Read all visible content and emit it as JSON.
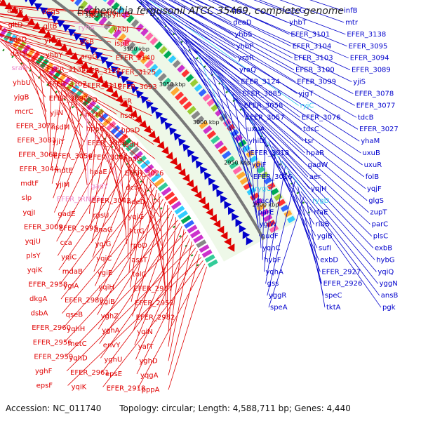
{
  "title": "Escherichia fergusonii ATCC 35469, complete genome",
  "footer": {
    "accession": "Accession: NC_011740",
    "topology": "Topology: circular; Length: 4,588,711 bp; Genes: 4,440"
  },
  "colors": {
    "left_gene": "#e00000",
    "right_gene": "#0000cc",
    "rna_gene": "#ee88cc",
    "cyan_gene": "#33ccee",
    "backbone": "#777777"
  },
  "ticks": [
    "3250 kbp",
    "3200 kbp",
    "3150 kbp",
    "3100 kbp",
    "3050 kbp",
    "3000 kbp",
    "2950 kbp",
    "2900 kbp"
  ],
  "left_labels": [
    {
      "t": "argR",
      "c": "r"
    },
    {
      "t": "degS",
      "c": "r"
    },
    {
      "t": "EFER_3200",
      "c": "r"
    },
    {
      "t": "yhcG",
      "c": "r"
    },
    {
      "t": "gltD",
      "c": "r"
    },
    {
      "t": "gltB",
      "c": "r"
    },
    {
      "t": "ryhA",
      "c": "p"
    },
    {
      "t": "yhbJ",
      "c": "r"
    },
    {
      "t": "kdsD",
      "c": "r"
    },
    {
      "t": "yrbG",
      "c": "r"
    },
    {
      "t": "sfsB",
      "c": "r"
    },
    {
      "t": "ispB",
      "c": "r"
    },
    {
      "t": "dacB",
      "c": "r"
    },
    {
      "t": "yhbY",
      "c": "r"
    },
    {
      "t": "argG",
      "c": "r"
    },
    {
      "t": "EFER_3140",
      "c": "r"
    },
    {
      "t": "sraG",
      "c": "p"
    },
    {
      "t": "EFER_3135",
      "c": "r"
    },
    {
      "t": "EFER_3127",
      "c": "r"
    },
    {
      "t": "EFER_3125",
      "c": "r"
    },
    {
      "t": "yhbU",
      "c": "r"
    },
    {
      "t": "EFER_3107",
      "c": "r"
    },
    {
      "t": "EFER_3110",
      "c": "r"
    },
    {
      "t": "EFER_3093",
      "c": "r"
    },
    {
      "t": "yjgB",
      "c": "r"
    },
    {
      "t": "EFER_3092",
      "c": "r"
    },
    {
      "t": "yjiO",
      "c": "r"
    },
    {
      "t": "yjiR",
      "c": "r"
    },
    {
      "t": "mcrC",
      "c": "r"
    },
    {
      "t": "yjiN",
      "c": "r"
    },
    {
      "t": "mcrB",
      "c": "r"
    },
    {
      "t": "hsdR",
      "c": "r"
    },
    {
      "t": "EFER_3072",
      "c": "r"
    },
    {
      "t": "hsdM",
      "c": "r"
    },
    {
      "t": "hpaC",
      "c": "r"
    },
    {
      "t": "hpaD",
      "c": "r"
    },
    {
      "t": "EFER_3081",
      "c": "r"
    },
    {
      "t": "yjiY",
      "c": "r"
    },
    {
      "t": "EFER_3060",
      "c": "r"
    },
    {
      "t": "fadH",
      "c": "r"
    },
    {
      "t": "EFER_3068",
      "c": "r"
    },
    {
      "t": "EFER_3056",
      "c": "r"
    },
    {
      "t": "EFER_3047",
      "c": "r"
    },
    {
      "t": "hpaG",
      "c": "r"
    },
    {
      "t": "EFER_3044",
      "c": "r"
    },
    {
      "t": "mdtE",
      "c": "r"
    },
    {
      "t": "hpaE",
      "c": "r"
    },
    {
      "t": "EFER_3026",
      "c": "r"
    },
    {
      "t": "mdtF",
      "c": "r"
    },
    {
      "t": "yjiM",
      "c": "r"
    },
    {
      "t": "gadY",
      "c": "p"
    },
    {
      "t": "dctR",
      "c": "r"
    },
    {
      "t": "slp",
      "c": "r"
    },
    {
      "t": "EFER_tRNA34",
      "c": "p"
    },
    {
      "t": "EFER_3042",
      "c": "r"
    },
    {
      "t": "hdeD",
      "c": "r"
    },
    {
      "t": "yqjI",
      "c": "r"
    },
    {
      "t": "gadE",
      "c": "r"
    },
    {
      "t": "rpsU",
      "c": "r"
    },
    {
      "t": "yqjG",
      "c": "r"
    },
    {
      "t": "EFER_3009",
      "c": "r"
    },
    {
      "t": "EFER_2995",
      "c": "r"
    },
    {
      "t": "dnaG",
      "c": "r"
    },
    {
      "t": "htrG",
      "c": "r"
    },
    {
      "t": "yqjU",
      "c": "r"
    },
    {
      "t": "cca",
      "c": "r"
    },
    {
      "t": "yqiG",
      "c": "r"
    },
    {
      "t": "rpoD",
      "c": "r"
    },
    {
      "t": "plsY",
      "c": "r"
    },
    {
      "t": "yqiC",
      "c": "r"
    },
    {
      "t": "yqiC",
      "c": "r"
    },
    {
      "t": "assT",
      "c": "r"
    },
    {
      "t": "yqiK",
      "c": "r"
    },
    {
      "t": "mdaB",
      "c": "r"
    },
    {
      "t": "ygiE",
      "c": "r"
    },
    {
      "t": "tolC",
      "c": "r"
    },
    {
      "t": "EFER_2958",
      "c": "r"
    },
    {
      "t": "ygiA",
      "c": "r"
    },
    {
      "t": "yqiH",
      "c": "r"
    },
    {
      "t": "EFER_2957",
      "c": "r"
    },
    {
      "t": "dkgA",
      "c": "r"
    },
    {
      "t": "EFER_2989",
      "c": "r"
    },
    {
      "t": "ygiB",
      "c": "r"
    },
    {
      "t": "EFER_2953",
      "c": "r"
    },
    {
      "t": "dsbA",
      "c": "r"
    },
    {
      "t": "qseB",
      "c": "r"
    },
    {
      "t": "yghZ",
      "c": "r"
    },
    {
      "t": "EFER_2982",
      "c": "r"
    },
    {
      "t": "EFER_2960",
      "c": "r"
    },
    {
      "t": "yqhH",
      "c": "r"
    },
    {
      "t": "yghA",
      "c": "r"
    },
    {
      "t": "yqiN",
      "c": "r"
    },
    {
      "t": "EFER_2956",
      "c": "r"
    },
    {
      "t": "metC",
      "c": "r"
    },
    {
      "t": "envY",
      "c": "r"
    },
    {
      "t": "yafT",
      "c": "r"
    },
    {
      "t": "EFER_2959",
      "c": "r"
    },
    {
      "t": "yqhD",
      "c": "r"
    },
    {
      "t": "yghU",
      "c": "r"
    },
    {
      "t": "yghD",
      "c": "r"
    },
    {
      "t": "yghF",
      "c": "r"
    },
    {
      "t": "EFER_2961",
      "c": "r"
    },
    {
      "t": "epsE",
      "c": "r"
    },
    {
      "t": "yqgA",
      "c": "r"
    },
    {
      "t": "epsF",
      "c": "r"
    },
    {
      "t": "yqiK",
      "c": "r"
    },
    {
      "t": "EFER_2918",
      "c": "r"
    },
    {
      "t": "pppA",
      "c": "r"
    }
  ],
  "right_labels": [
    {
      "t": "rpsO",
      "c": "b"
    },
    {
      "t": "secG",
      "c": "b"
    },
    {
      "t": "infB",
      "c": "b"
    },
    {
      "t": "deaD",
      "c": "b"
    },
    {
      "t": "yhbT",
      "c": "b"
    },
    {
      "t": "mtr",
      "c": "b"
    },
    {
      "t": "yhbS",
      "c": "b"
    },
    {
      "t": "EFER_3101",
      "c": "b"
    },
    {
      "t": "EFER_3138",
      "c": "b"
    },
    {
      "t": "yhbP",
      "c": "b"
    },
    {
      "t": "EFER_3104",
      "c": "b"
    },
    {
      "t": "EFER_3095",
      "c": "b"
    },
    {
      "t": "yraR",
      "c": "b"
    },
    {
      "t": "EFER_3103",
      "c": "b"
    },
    {
      "t": "EFER_3094",
      "c": "b"
    },
    {
      "t": "yraQ",
      "c": "b"
    },
    {
      "t": "EFER_3100",
      "c": "b"
    },
    {
      "t": "EFER_3089",
      "c": "b"
    },
    {
      "t": "EFER_3124",
      "c": "b"
    },
    {
      "t": "EFER_3099",
      "c": "b"
    },
    {
      "t": "yjiS",
      "c": "b"
    },
    {
      "t": "EFER_3085",
      "c": "b"
    },
    {
      "t": "yjgT",
      "c": "b"
    },
    {
      "t": "EFER_3078",
      "c": "b"
    },
    {
      "t": "EFER_3058",
      "c": "b"
    },
    {
      "t": "ryjC",
      "c": "c"
    },
    {
      "t": "EFER_3077",
      "c": "b"
    },
    {
      "t": "EFER_3057",
      "c": "b"
    },
    {
      "t": "EFER_3076",
      "c": "b"
    },
    {
      "t": "tdcB",
      "c": "b"
    },
    {
      "t": "uxuA",
      "c": "b"
    },
    {
      "t": "tdcC",
      "c": "b"
    },
    {
      "t": "EFER_3027",
      "c": "b"
    },
    {
      "t": "yhiD",
      "c": "b"
    },
    {
      "t": "tsr",
      "c": "b"
    },
    {
      "t": "yhaM",
      "c": "b"
    },
    {
      "t": "EFER_3018",
      "c": "b"
    },
    {
      "t": "hpaR",
      "c": "b"
    },
    {
      "t": "uxuB",
      "c": "b"
    },
    {
      "t": "ygiF",
      "c": "b"
    },
    {
      "t": "gadW",
      "c": "b"
    },
    {
      "t": "uxuR",
      "c": "b"
    },
    {
      "t": "EFER_3016",
      "c": "b"
    },
    {
      "t": "aer",
      "c": "b"
    },
    {
      "t": "folB",
      "c": "b"
    },
    {
      "t": "rygC",
      "c": "c"
    },
    {
      "t": "yqjH",
      "c": "b"
    },
    {
      "t": "yqjF",
      "c": "b"
    },
    {
      "t": "bacA",
      "c": "b"
    },
    {
      "t": "rygD",
      "c": "c"
    },
    {
      "t": "glgS",
      "c": "b"
    },
    {
      "t": "parE",
      "c": "b"
    },
    {
      "t": "rfaE",
      "c": "b"
    },
    {
      "t": "zupT",
      "c": "b"
    },
    {
      "t": "ygiW",
      "c": "b"
    },
    {
      "t": "ribB",
      "c": "b"
    },
    {
      "t": "parC",
      "c": "b"
    },
    {
      "t": "nudF",
      "c": "b"
    },
    {
      "t": "ygiB",
      "c": "b"
    },
    {
      "t": "plsC",
      "c": "b"
    },
    {
      "t": "yqhC",
      "c": "b"
    },
    {
      "t": "sufI",
      "c": "b"
    },
    {
      "t": "exbB",
      "c": "b"
    },
    {
      "t": "hybF",
      "c": "b"
    },
    {
      "t": "exbD",
      "c": "b"
    },
    {
      "t": "hybG",
      "c": "b"
    },
    {
      "t": "yqhA",
      "c": "b"
    },
    {
      "t": "EFER_2927",
      "c": "b"
    },
    {
      "t": "yqiQ",
      "c": "b"
    },
    {
      "t": "gss",
      "c": "b"
    },
    {
      "t": "EFER_2926",
      "c": "b"
    },
    {
      "t": "yggN",
      "c": "b"
    },
    {
      "t": "yggR",
      "c": "b"
    },
    {
      "t": "speC",
      "c": "b"
    },
    {
      "t": "ansB",
      "c": "b"
    },
    {
      "t": "speA",
      "c": "b"
    },
    {
      "t": "tktA",
      "c": "b"
    },
    {
      "t": "pgk",
      "c": "b"
    }
  ]
}
